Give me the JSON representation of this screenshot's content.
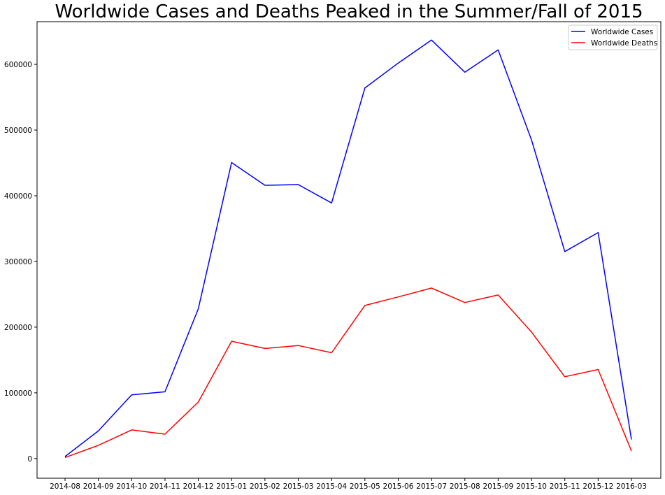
{
  "chart_data": {
    "type": "line",
    "title": "Worldwide Cases and Deaths Peaked in the Summer/Fall of 2015",
    "xlabel": "",
    "ylabel": "",
    "categories": [
      "2014-08",
      "2014-09",
      "2014-10",
      "2014-11",
      "2014-12",
      "2015-01",
      "2015-02",
      "2015-03",
      "2015-04",
      "2015-05",
      "2015-06",
      "2015-07",
      "2015-08",
      "2015-09",
      "2015-10",
      "2015-11",
      "2015-12",
      "2016-03"
    ],
    "series": [
      {
        "name": "Worldwide Cases",
        "color": "#0000ff",
        "values": [
          3000,
          42000,
          97000,
          101500,
          228000,
          450500,
          416000,
          417000,
          389000,
          564000,
          602000,
          637000,
          588000,
          622000,
          485000,
          315000,
          344000,
          29000
        ]
      },
      {
        "name": "Worldwide Deaths",
        "color": "#ff0000",
        "values": [
          1500,
          20000,
          43500,
          37000,
          86000,
          178500,
          167500,
          172000,
          161000,
          233000,
          246000,
          259500,
          237500,
          249000,
          192500,
          124500,
          135500,
          11500
        ]
      }
    ],
    "yticks": [
      0,
      100000,
      200000,
      300000,
      400000,
      500000,
      600000
    ],
    "ylim": [
      -30000,
      665000
    ],
    "grid": false,
    "legend": "top-right"
  }
}
